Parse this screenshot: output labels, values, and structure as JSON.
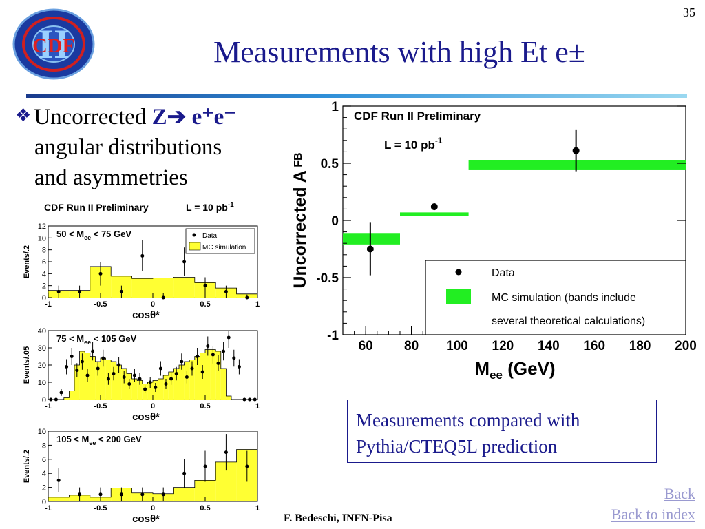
{
  "slide_number": "35",
  "title": "Measurements with high Et e±",
  "logo": {
    "text": "CDF",
    "numeral": "II"
  },
  "bullet": {
    "symbol": "❖",
    "prefix": "Uncorrected ",
    "z": "Z",
    "arrow": "➔",
    "ee": " e⁺e⁻",
    "line2": "angular distributions",
    "line3": "and asymmetries"
  },
  "callout": {
    "line1": "Measurements compared with",
    "line2": "Pythia/CTEQ5L prediction"
  },
  "footer": "F. Bedeschi, INFN-Pisa",
  "links": {
    "back": "Back",
    "back_to_index": "Back to index"
  },
  "colors": {
    "title_blue": "#1a1a8c",
    "mc_yellow": "#ffff33",
    "mc_green": "#22ee22"
  },
  "chart_data": [
    {
      "type": "line",
      "header": "CDF Run II Preliminary",
      "lumi": "L = 10 pb",
      "lumi_exp": "-1",
      "ylabel": "Uncorrected A",
      "ylabel_sub": "FB",
      "xlabel": "M",
      "xlabel_sub": "ee",
      "xlabel_unit": " (GeV)",
      "xlim": [
        50,
        200
      ],
      "ylim": [
        -1,
        1
      ],
      "xticks": [
        60,
        80,
        100,
        120,
        140,
        160,
        180,
        200
      ],
      "xtick_labels": [
        "60",
        "80",
        "100",
        "120",
        "140",
        "160",
        "180",
        "200"
      ],
      "yticks": [
        -1,
        -0.5,
        0,
        0.5,
        1
      ],
      "ytick_labels": [
        "-1",
        "-0.5",
        "0",
        "0.5",
        "1"
      ],
      "data": [
        {
          "x": 62,
          "y": -0.25,
          "err": 0.23
        },
        {
          "x": 90,
          "y": 0.12,
          "err": 0.03
        },
        {
          "x": 152,
          "y": 0.61,
          "err": 0.18
        }
      ],
      "mc_bands": [
        {
          "x0": 50,
          "x1": 75,
          "y0": -0.21,
          "y1": -0.11
        },
        {
          "x0": 75,
          "x1": 105,
          "y0": 0.04,
          "y1": 0.07
        },
        {
          "x0": 105,
          "x1": 200,
          "y0": 0.44,
          "y1": 0.53
        }
      ],
      "legend": {
        "placement": "bottom-right",
        "data_label": "Data",
        "mc_label_1": "MC simulation (bands include",
        "mc_label_2": "several theoretical calculations)"
      }
    },
    {
      "type": "bar",
      "header": "CDF Run II Preliminary",
      "lumi": "L = 10 pb",
      "lumi_exp": "-1",
      "range_label": "50 < M",
      "range_sub": "ee",
      "range_tail": " < 75 GeV",
      "ylabel": "Events/.2",
      "xlabel": "cosθ*",
      "xlim": [
        -1,
        1
      ],
      "ylim": [
        0,
        12
      ],
      "yticks": [
        0,
        2,
        4,
        6,
        8,
        10,
        12
      ],
      "ytick_labels": [
        "0",
        "2",
        "4",
        "6",
        "8",
        "10",
        "12"
      ],
      "xticks": [
        -1,
        -0.5,
        0,
        0.5,
        1
      ],
      "xtick_labels": [
        "-1",
        "-0.5",
        "0",
        "0.5",
        "1"
      ],
      "mc_values": [
        1.2,
        1.2,
        5.2,
        3.6,
        3.2,
        3.3,
        3.4,
        2.5,
        1.6,
        0.6
      ],
      "data_points": [
        {
          "x": -0.9,
          "y": 1,
          "err": 1
        },
        {
          "x": -0.7,
          "y": 1,
          "err": 1
        },
        {
          "x": -0.5,
          "y": 4,
          "err": 2
        },
        {
          "x": -0.3,
          "y": 1,
          "err": 1
        },
        {
          "x": -0.1,
          "y": 7,
          "err": 2.6
        },
        {
          "x": 0.1,
          "y": 0,
          "err": 0.8
        },
        {
          "x": 0.3,
          "y": 6,
          "err": 2.4
        },
        {
          "x": 0.5,
          "y": 2,
          "err": 1.4
        },
        {
          "x": 0.7,
          "y": 1,
          "err": 1
        },
        {
          "x": 0.9,
          "y": 0,
          "err": 0.5
        }
      ],
      "legend": {
        "placement": "top-right",
        "data_label": "Data",
        "mc_label": "MC simulation"
      }
    },
    {
      "type": "bar",
      "range_label": "75 < M",
      "range_sub": "ee",
      "range_tail": " < 105 GeV",
      "ylabel": "Events/.05",
      "xlabel": "cosθ*",
      "xlim": [
        -1,
        1
      ],
      "ylim": [
        0,
        40
      ],
      "yticks": [
        0,
        10,
        20,
        30,
        40
      ],
      "ytick_labels": [
        "0",
        "10",
        "20",
        "30",
        "40"
      ],
      "xticks": [
        -1,
        -0.5,
        0,
        0.5,
        1
      ],
      "xtick_labels": [
        "-1",
        "-0.5",
        "0",
        "0.5",
        "1"
      ],
      "mc_values": [
        0,
        0,
        0,
        1,
        5,
        20,
        28,
        27,
        25,
        22,
        24,
        23,
        22,
        20,
        18,
        15,
        12,
        11,
        9,
        10,
        11,
        12,
        14,
        16,
        18,
        20,
        22,
        23,
        25,
        27,
        29,
        29,
        28,
        18,
        2,
        0,
        0,
        0,
        0,
        0
      ],
      "data_points": [
        {
          "x": -0.975,
          "y": 0,
          "err": 0.5
        },
        {
          "x": -0.925,
          "y": 0,
          "err": 0.5
        },
        {
          "x": -0.875,
          "y": 4,
          "err": 2
        },
        {
          "x": -0.825,
          "y": 19,
          "err": 4.4
        },
        {
          "x": -0.775,
          "y": 25,
          "err": 5
        },
        {
          "x": -0.725,
          "y": 17,
          "err": 4.1
        },
        {
          "x": -0.675,
          "y": 22,
          "err": 4.7
        },
        {
          "x": -0.625,
          "y": 14,
          "err": 3.7
        },
        {
          "x": -0.575,
          "y": 28,
          "err": 5.3
        },
        {
          "x": -0.525,
          "y": 18,
          "err": 4.2
        },
        {
          "x": -0.475,
          "y": 24,
          "err": 4.9
        },
        {
          "x": -0.425,
          "y": 12,
          "err": 3.5
        },
        {
          "x": -0.375,
          "y": 15,
          "err": 3.9
        },
        {
          "x": -0.325,
          "y": 20,
          "err": 4.5
        },
        {
          "x": -0.275,
          "y": 13,
          "err": 3.6
        },
        {
          "x": -0.225,
          "y": 9,
          "err": 3
        },
        {
          "x": -0.175,
          "y": 14,
          "err": 3.7
        },
        {
          "x": -0.125,
          "y": 12,
          "err": 3.5
        },
        {
          "x": -0.075,
          "y": 6,
          "err": 2.4
        },
        {
          "x": -0.025,
          "y": 10,
          "err": 3.2
        },
        {
          "x": 0.025,
          "y": 7,
          "err": 2.6
        },
        {
          "x": 0.075,
          "y": 18,
          "err": 4.2
        },
        {
          "x": 0.125,
          "y": 9,
          "err": 3
        },
        {
          "x": 0.175,
          "y": 12,
          "err": 3.5
        },
        {
          "x": 0.225,
          "y": 15,
          "err": 3.9
        },
        {
          "x": 0.275,
          "y": 22,
          "err": 4.7
        },
        {
          "x": 0.325,
          "y": 13,
          "err": 3.6
        },
        {
          "x": 0.375,
          "y": 18,
          "err": 4.2
        },
        {
          "x": 0.425,
          "y": 25,
          "err": 5
        },
        {
          "x": 0.475,
          "y": 16,
          "err": 4
        },
        {
          "x": 0.525,
          "y": 31,
          "err": 5.6
        },
        {
          "x": 0.575,
          "y": 26,
          "err": 5.1
        },
        {
          "x": 0.625,
          "y": 21,
          "err": 4.6
        },
        {
          "x": 0.675,
          "y": 28,
          "err": 5.3
        },
        {
          "x": 0.725,
          "y": 36,
          "err": 6
        },
        {
          "x": 0.775,
          "y": 24,
          "err": 4.9
        },
        {
          "x": 0.825,
          "y": 19,
          "err": 4.4
        },
        {
          "x": 0.875,
          "y": 0,
          "err": 0.5
        },
        {
          "x": 0.925,
          "y": 0,
          "err": 0.5
        },
        {
          "x": 0.975,
          "y": 0,
          "err": 0.5
        }
      ]
    },
    {
      "type": "bar",
      "range_label": "105 < M",
      "range_sub": "ee",
      "range_tail": " < 200 GeV",
      "ylabel": "Events/.2",
      "xlabel": "cosθ*",
      "xlim": [
        -1,
        1
      ],
      "ylim": [
        0,
        10
      ],
      "yticks": [
        0,
        2,
        4,
        6,
        8,
        10
      ],
      "ytick_labels": [
        "0",
        "2",
        "4",
        "6",
        "8",
        "10"
      ],
      "xticks": [
        -1,
        -0.5,
        0,
        0.5,
        1
      ],
      "xtick_labels": [
        "-1",
        "-0.5",
        "0",
        "0.5",
        "1"
      ],
      "mc_values": [
        0.6,
        0.9,
        0.6,
        1.9,
        1.2,
        1.1,
        2.0,
        3.0,
        5.6,
        7.4
      ],
      "data_points": [
        {
          "x": -0.9,
          "y": 3,
          "err": 1.7
        },
        {
          "x": -0.7,
          "y": 1,
          "err": 1
        },
        {
          "x": -0.5,
          "y": 1,
          "err": 1
        },
        {
          "x": -0.3,
          "y": 1,
          "err": 1
        },
        {
          "x": -0.1,
          "y": 1,
          "err": 1
        },
        {
          "x": 0.1,
          "y": 1,
          "err": 1
        },
        {
          "x": 0.3,
          "y": 4,
          "err": 2
        },
        {
          "x": 0.5,
          "y": 5,
          "err": 2.2
        },
        {
          "x": 0.7,
          "y": 7,
          "err": 2.6
        },
        {
          "x": 0.9,
          "y": 5,
          "err": 2.2
        }
      ]
    }
  ]
}
